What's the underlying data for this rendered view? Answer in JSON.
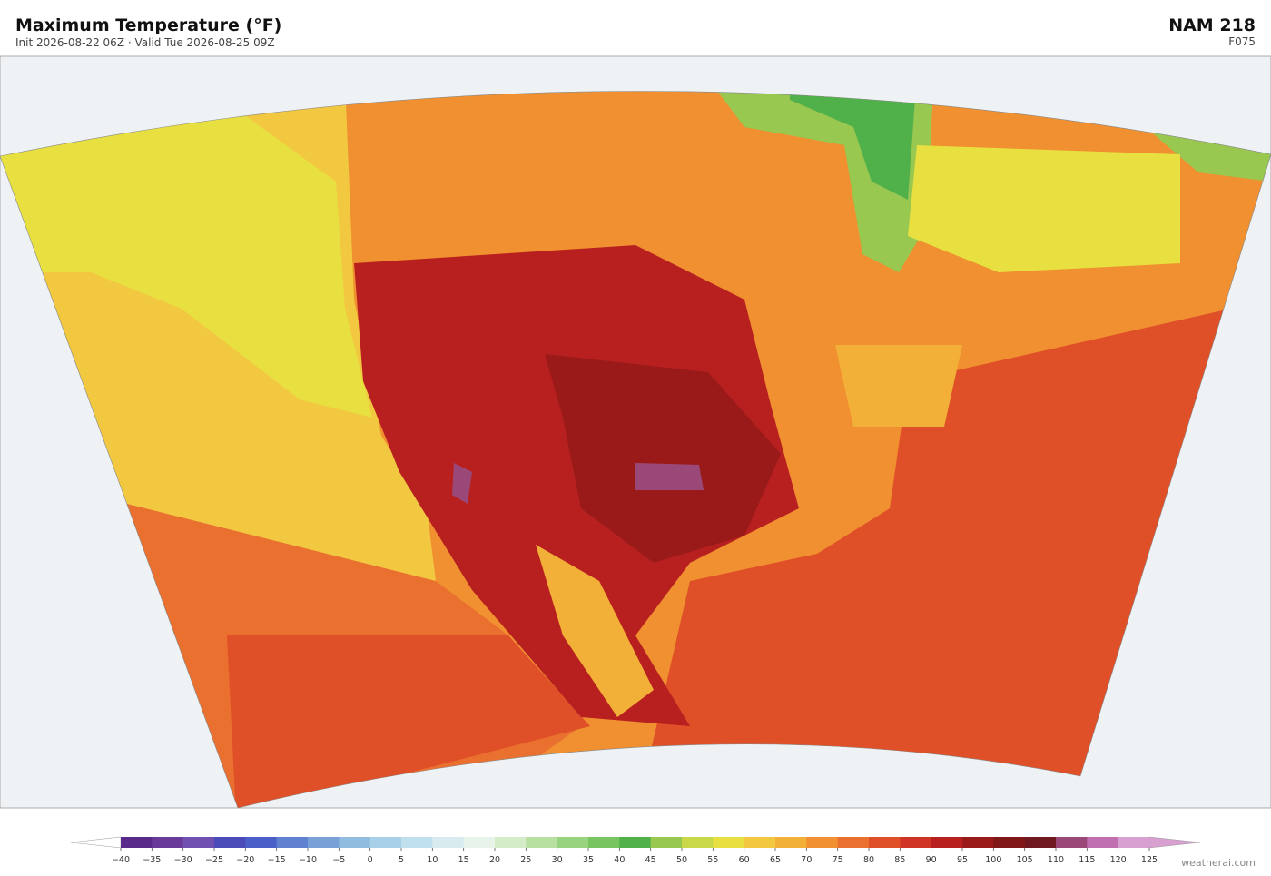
{
  "header": {
    "title": "Maximum Temperature  (°F)",
    "subtitle": "Init 2026-08-22 06Z  ·  Valid Tue 2026-08-25 09Z",
    "model": "NAM  218",
    "forecast_hour": "F075"
  },
  "colorbar": {
    "ticks": [
      {
        "value": -40,
        "label": "−40"
      },
      {
        "value": -35,
        "label": "−35"
      },
      {
        "value": -30,
        "label": "−30"
      },
      {
        "value": -25,
        "label": "−25"
      },
      {
        "value": -20,
        "label": "−20"
      },
      {
        "value": -15,
        "label": "−15"
      },
      {
        "value": -10,
        "label": "−10"
      },
      {
        "value": -5,
        "label": "−5"
      },
      0,
      5,
      10,
      15,
      20,
      25,
      30,
      35,
      40,
      45,
      50,
      55,
      60,
      65,
      70,
      75,
      80,
      85,
      90,
      95,
      100,
      105,
      110,
      115,
      120,
      125
    ],
    "colors": [
      "#5a2a8a",
      "#6a3a9a",
      "#7050b0",
      "#4a4ab8",
      "#4a60c8",
      "#6080d0",
      "#7aa0d8",
      "#90bce0",
      "#a8d0e8",
      "#c0e0ee",
      "#d8ecf0",
      "#e8f4ea",
      "#d4ecc8",
      "#b8e0a0",
      "#98d480",
      "#78c460",
      "#50b04a",
      "#98c850",
      "#c8d848",
      "#e8e040",
      "#f2c840",
      "#f2b038",
      "#f09030",
      "#ea7030",
      "#e05028",
      "#d03424",
      "#b82020",
      "#9a1a1a",
      "#801818",
      "#701820",
      "#9a4878",
      "#c070b0",
      "#d8a0d0"
    ],
    "under_color": "#ffffff",
    "over_color": "#d8a0d0"
  },
  "footer": {
    "watermark": "weatherai.com"
  }
}
